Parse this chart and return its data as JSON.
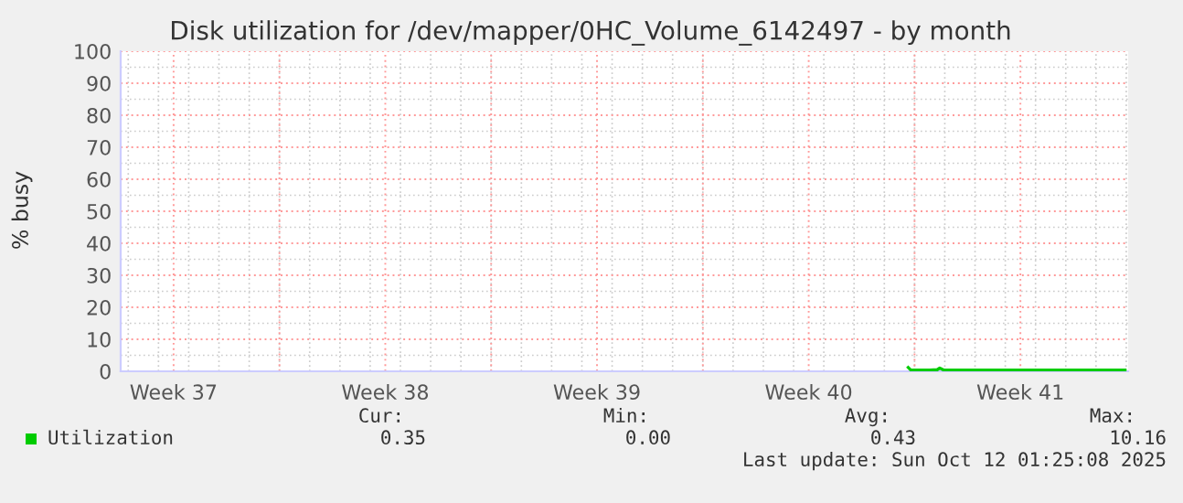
{
  "chart_data": {
    "type": "line",
    "title": "Disk utilization for /dev/mapper/0HC_Volume_6142497 - by month",
    "ylabel": "% busy",
    "series": [
      {
        "name": "Utilization",
        "color": "#00cc00",
        "x": [
          "2025-10-05T19:00",
          "2025-10-05T21:00",
          "2025-10-06T12:00",
          "2025-10-06T18:00",
          "2025-10-06T20:00",
          "2025-10-06T23:00",
          "2025-10-08T12:00",
          "2025-10-10T12:00",
          "2025-10-12T23:00"
        ],
        "values": [
          1.2,
          0.4,
          0.4,
          0.5,
          1.0,
          0.4,
          0.4,
          0.4,
          0.35
        ]
      }
    ],
    "xlim": [
      "2025-09-09T18:00",
      "2025-10-13T01:30"
    ],
    "xticks": [
      {
        "value": "2025-09-11T12:00",
        "label": "Week 37"
      },
      {
        "value": "2025-09-15",
        "label": null
      },
      {
        "value": "2025-09-18T12:00",
        "label": "Week 38"
      },
      {
        "value": "2025-09-22",
        "label": null
      },
      {
        "value": "2025-09-25T12:00",
        "label": "Week 39"
      },
      {
        "value": "2025-09-29",
        "label": null
      },
      {
        "value": "2025-10-02T12:00",
        "label": "Week 40"
      },
      {
        "value": "2025-10-06",
        "label": null
      },
      {
        "value": "2025-10-09T12:00",
        "label": "Week 41"
      }
    ],
    "ylim": [
      0,
      100
    ],
    "yticks": [
      0,
      10,
      20,
      30,
      40,
      50,
      60,
      70,
      80,
      90,
      100
    ],
    "grid": true,
    "legend": "bottom",
    "marker": "none",
    "line_style": "solid",
    "annotations": [
      "Cur:",
      "Min:",
      "Avg:",
      "Max:",
      "0.35",
      "0.00",
      "0.43",
      "10.16",
      "Last update: Sun Oct 12 01:25:08 2025"
    ]
  }
}
